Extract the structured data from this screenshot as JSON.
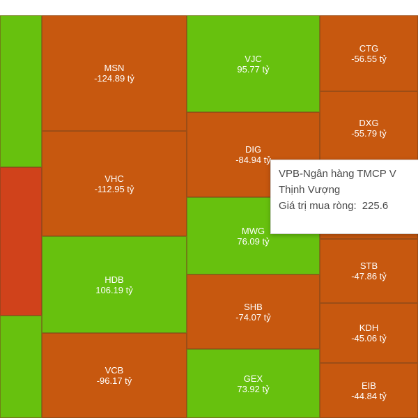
{
  "chart_data": {
    "type": "treemap",
    "unit": "tỷ",
    "colors": {
      "positive": "#67c10e",
      "negative": "#c7580f",
      "strong_negative": "#d0421b"
    },
    "items": [
      {
        "ticker": "",
        "value": null,
        "sign": "positive"
      },
      {
        "ticker": "",
        "value": null,
        "sign": "strong_negative"
      },
      {
        "ticker": "",
        "value": null,
        "sign": "positive"
      },
      {
        "ticker": "MSN",
        "value": -124.89,
        "label": "-124.89 tỷ"
      },
      {
        "ticker": "VHC",
        "value": -112.95,
        "label": "-112.95 tỷ"
      },
      {
        "ticker": "HDB",
        "value": 106.19,
        "label": "106.19 tỷ"
      },
      {
        "ticker": "VCB",
        "value": -96.17,
        "label": "-96.17 tỷ"
      },
      {
        "ticker": "VJC",
        "value": 95.77,
        "label": "95.77 tỷ"
      },
      {
        "ticker": "DIG",
        "value": -84.94,
        "label": "-84.94 tỷ"
      },
      {
        "ticker": "MWG",
        "value": 76.09,
        "label": "76.09 tỷ"
      },
      {
        "ticker": "SHB",
        "value": -74.07,
        "label": "-74.07 tỷ"
      },
      {
        "ticker": "GEX",
        "value": 73.92,
        "label": "73.92 tỷ"
      },
      {
        "ticker": "CTG",
        "value": -56.55,
        "label": "-56.55 tỷ"
      },
      {
        "ticker": "DXG",
        "value": -55.79,
        "label": "-55.79 tỷ"
      },
      {
        "ticker": "",
        "value": null,
        "sign": "negative"
      },
      {
        "ticker": "STB",
        "value": -47.86,
        "label": "-47.86 tỷ"
      },
      {
        "ticker": "KDH",
        "value": -45.06,
        "label": "-45.06 tỷ"
      },
      {
        "ticker": "EIB",
        "value": -44.84,
        "label": "-44.84 tỷ"
      }
    ]
  },
  "tooltip": {
    "name_line1": "VPB-Ngân hàng TMCP V",
    "name_line2": "Thịnh Vượng",
    "metric_label": "Giá trị mua ròng:",
    "metric_value": "225.6"
  }
}
